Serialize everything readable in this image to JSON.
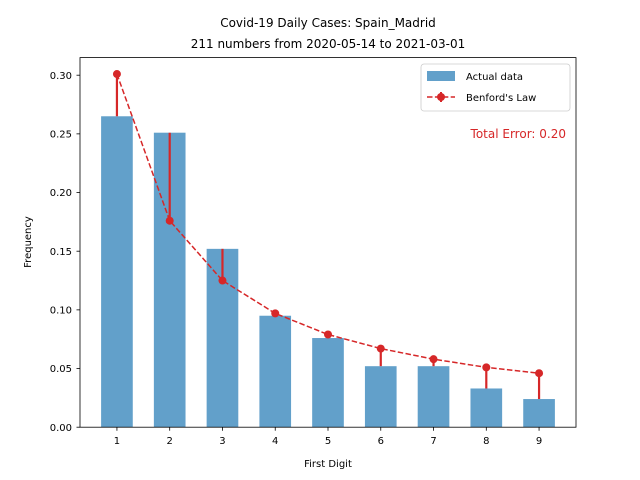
{
  "chart_data": {
    "type": "bar",
    "title": "Covid-19 Daily Cases: Spain_Madrid",
    "subtitle": "211 numbers from 2020-05-14 to 2021-03-01",
    "xlabel": "First Digit",
    "ylabel": "Frequency",
    "categories": [
      "1",
      "2",
      "3",
      "4",
      "5",
      "6",
      "7",
      "8",
      "9"
    ],
    "ylim": [
      0,
      0.3
    ],
    "yticks": [
      "0.00",
      "0.05",
      "0.10",
      "0.15",
      "0.20",
      "0.25",
      "0.30"
    ],
    "series": [
      {
        "name": "Actual data",
        "type": "bar",
        "color": "#1f77b4",
        "values": [
          0.265,
          0.251,
          0.152,
          0.095,
          0.076,
          0.052,
          0.052,
          0.033,
          0.024
        ]
      },
      {
        "name": "Benford's Law",
        "type": "line",
        "color": "#d62728",
        "values": [
          0.301,
          0.176,
          0.125,
          0.097,
          0.079,
          0.067,
          0.058,
          0.051,
          0.046
        ]
      }
    ],
    "annotation": "Total Error: 0.20",
    "annotation_color": "#d62728",
    "legend_position": "top-right",
    "grid": false
  }
}
